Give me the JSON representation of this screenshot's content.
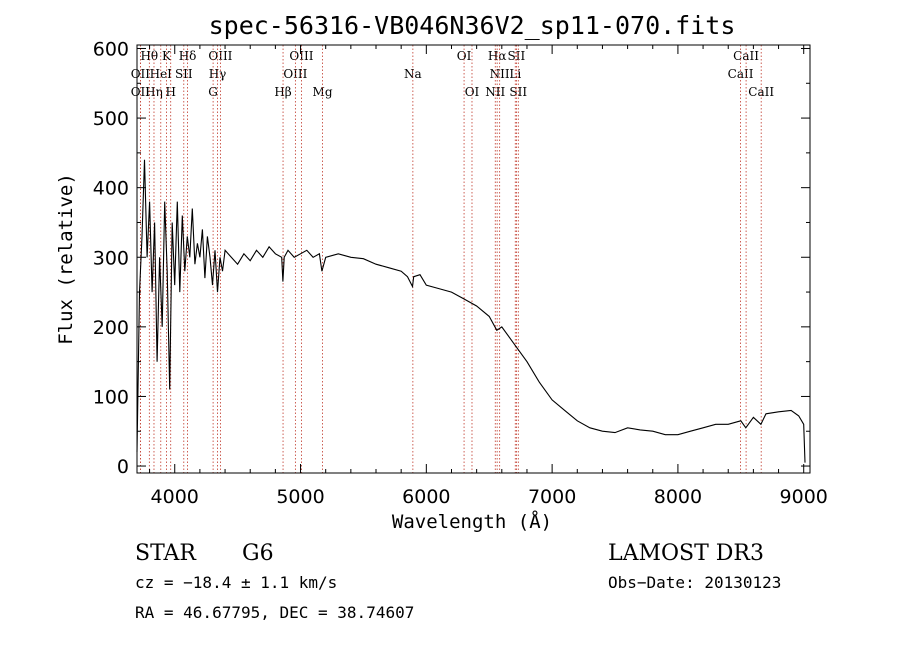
{
  "chart_data": {
    "type": "line",
    "title": "spec-56316-VB046N36V2_sp11-070.fits",
    "xlabel": "Wavelength (Å)",
    "ylabel": "Flux (relative)",
    "xlim": [
      3700,
      9050
    ],
    "ylim": [
      -10,
      605
    ],
    "xticks": [
      4000,
      5000,
      6000,
      7000,
      8000,
      9000
    ],
    "yticks": [
      0,
      100,
      200,
      300,
      400,
      500,
      600
    ],
    "grid": false,
    "series": [
      {
        "points": [
          [
            3700,
            20
          ],
          [
            3720,
            250
          ],
          [
            3740,
            330
          ],
          [
            3760,
            440
          ],
          [
            3780,
            300
          ],
          [
            3800,
            380
          ],
          [
            3820,
            250
          ],
          [
            3840,
            350
          ],
          [
            3860,
            150
          ],
          [
            3880,
            300
          ],
          [
            3900,
            200
          ],
          [
            3920,
            380
          ],
          [
            3940,
            280
          ],
          [
            3960,
            110
          ],
          [
            3980,
            350
          ],
          [
            4000,
            260
          ],
          [
            4020,
            380
          ],
          [
            4040,
            250
          ],
          [
            4060,
            360
          ],
          [
            4080,
            280
          ],
          [
            4100,
            330
          ],
          [
            4120,
            300
          ],
          [
            4140,
            370
          ],
          [
            4160,
            290
          ],
          [
            4180,
            320
          ],
          [
            4200,
            300
          ],
          [
            4220,
            340
          ],
          [
            4240,
            270
          ],
          [
            4260,
            330
          ],
          [
            4280,
            300
          ],
          [
            4300,
            260
          ],
          [
            4320,
            310
          ],
          [
            4340,
            250
          ],
          [
            4360,
            300
          ],
          [
            4380,
            280
          ],
          [
            4400,
            310
          ],
          [
            4450,
            300
          ],
          [
            4500,
            290
          ],
          [
            4550,
            305
          ],
          [
            4600,
            295
          ],
          [
            4650,
            310
          ],
          [
            4700,
            300
          ],
          [
            4750,
            315
          ],
          [
            4800,
            305
          ],
          [
            4850,
            300
          ],
          [
            4860,
            265
          ],
          [
            4870,
            300
          ],
          [
            4900,
            310
          ],
          [
            4950,
            300
          ],
          [
            5000,
            305
          ],
          [
            5050,
            310
          ],
          [
            5100,
            300
          ],
          [
            5150,
            305
          ],
          [
            5170,
            280
          ],
          [
            5200,
            300
          ],
          [
            5300,
            305
          ],
          [
            5400,
            300
          ],
          [
            5500,
            298
          ],
          [
            5600,
            290
          ],
          [
            5700,
            285
          ],
          [
            5800,
            280
          ],
          [
            5850,
            272
          ],
          [
            5890,
            258
          ],
          [
            5900,
            272
          ],
          [
            5950,
            275
          ],
          [
            6000,
            260
          ],
          [
            6100,
            255
          ],
          [
            6200,
            250
          ],
          [
            6300,
            240
          ],
          [
            6400,
            230
          ],
          [
            6500,
            215
          ],
          [
            6560,
            195
          ],
          [
            6600,
            200
          ],
          [
            6700,
            175
          ],
          [
            6800,
            150
          ],
          [
            6900,
            120
          ],
          [
            7000,
            95
          ],
          [
            7100,
            80
          ],
          [
            7200,
            65
          ],
          [
            7300,
            55
          ],
          [
            7400,
            50
          ],
          [
            7500,
            48
          ],
          [
            7600,
            55
          ],
          [
            7700,
            52
          ],
          [
            7800,
            50
          ],
          [
            7900,
            45
          ],
          [
            8000,
            45
          ],
          [
            8100,
            50
          ],
          [
            8200,
            55
          ],
          [
            8300,
            60
          ],
          [
            8400,
            60
          ],
          [
            8500,
            65
          ],
          [
            8540,
            55
          ],
          [
            8600,
            70
          ],
          [
            8660,
            60
          ],
          [
            8700,
            75
          ],
          [
            8800,
            78
          ],
          [
            8900,
            80
          ],
          [
            8960,
            72
          ],
          [
            9000,
            60
          ],
          [
            9010,
            5
          ]
        ]
      }
    ],
    "lines": [
      {
        "label": "Hθ",
        "x": 3798,
        "row": 0
      },
      {
        "label": "OII",
        "x": 3727,
        "row": 1
      },
      {
        "label": "OII",
        "x": 3727,
        "row": 2
      },
      {
        "label": "Hη",
        "x": 3835,
        "row": 2
      },
      {
        "label": "HeI",
        "x": 3889,
        "row": 1
      },
      {
        "label": "K",
        "x": 3934,
        "row": 0
      },
      {
        "label": "H",
        "x": 3968,
        "row": 2
      },
      {
        "label": "SII",
        "x": 4072,
        "row": 1
      },
      {
        "label": "Hδ",
        "x": 4102,
        "row": 0
      },
      {
        "label": "G",
        "x": 4305,
        "row": 2
      },
      {
        "label": "Hγ",
        "x": 4340,
        "row": 1
      },
      {
        "label": "OIII",
        "x": 4363,
        "row": 0
      },
      {
        "label": "Hβ",
        "x": 4861,
        "row": 2
      },
      {
        "label": "OIII",
        "x": 4959,
        "row": 1
      },
      {
        "label": "OIII",
        "x": 5007,
        "row": 0
      },
      {
        "label": "Mg",
        "x": 5175,
        "row": 2
      },
      {
        "label": "Na",
        "x": 5893,
        "row": 1
      },
      {
        "label": "OI",
        "x": 6300,
        "row": 0
      },
      {
        "label": "OI",
        "x": 6363,
        "row": 2
      },
      {
        "label": "NII",
        "x": 6548,
        "row": 2
      },
      {
        "label": "Hα",
        "x": 6563,
        "row": 0
      },
      {
        "label": "NII",
        "x": 6583,
        "row": 1
      },
      {
        "label": "Li",
        "x": 6707,
        "row": 1
      },
      {
        "label": "SII",
        "x": 6716,
        "row": 0
      },
      {
        "label": "SII",
        "x": 6731,
        "row": 2
      },
      {
        "label": "CaII",
        "x": 8498,
        "row": 1
      },
      {
        "label": "CaII",
        "x": 8542,
        "row": 0
      },
      {
        "label": "CaII",
        "x": 8662,
        "row": 2
      }
    ]
  },
  "info": {
    "object_class": "STAR",
    "subclass": "G6",
    "survey": "LAMOST DR3",
    "cz": "cz = −18.4 ± 1.1 km/s",
    "obs_date": "Obs−Date: 20130123",
    "radec": "RA =  46.67795, DEC =  38.74607"
  }
}
